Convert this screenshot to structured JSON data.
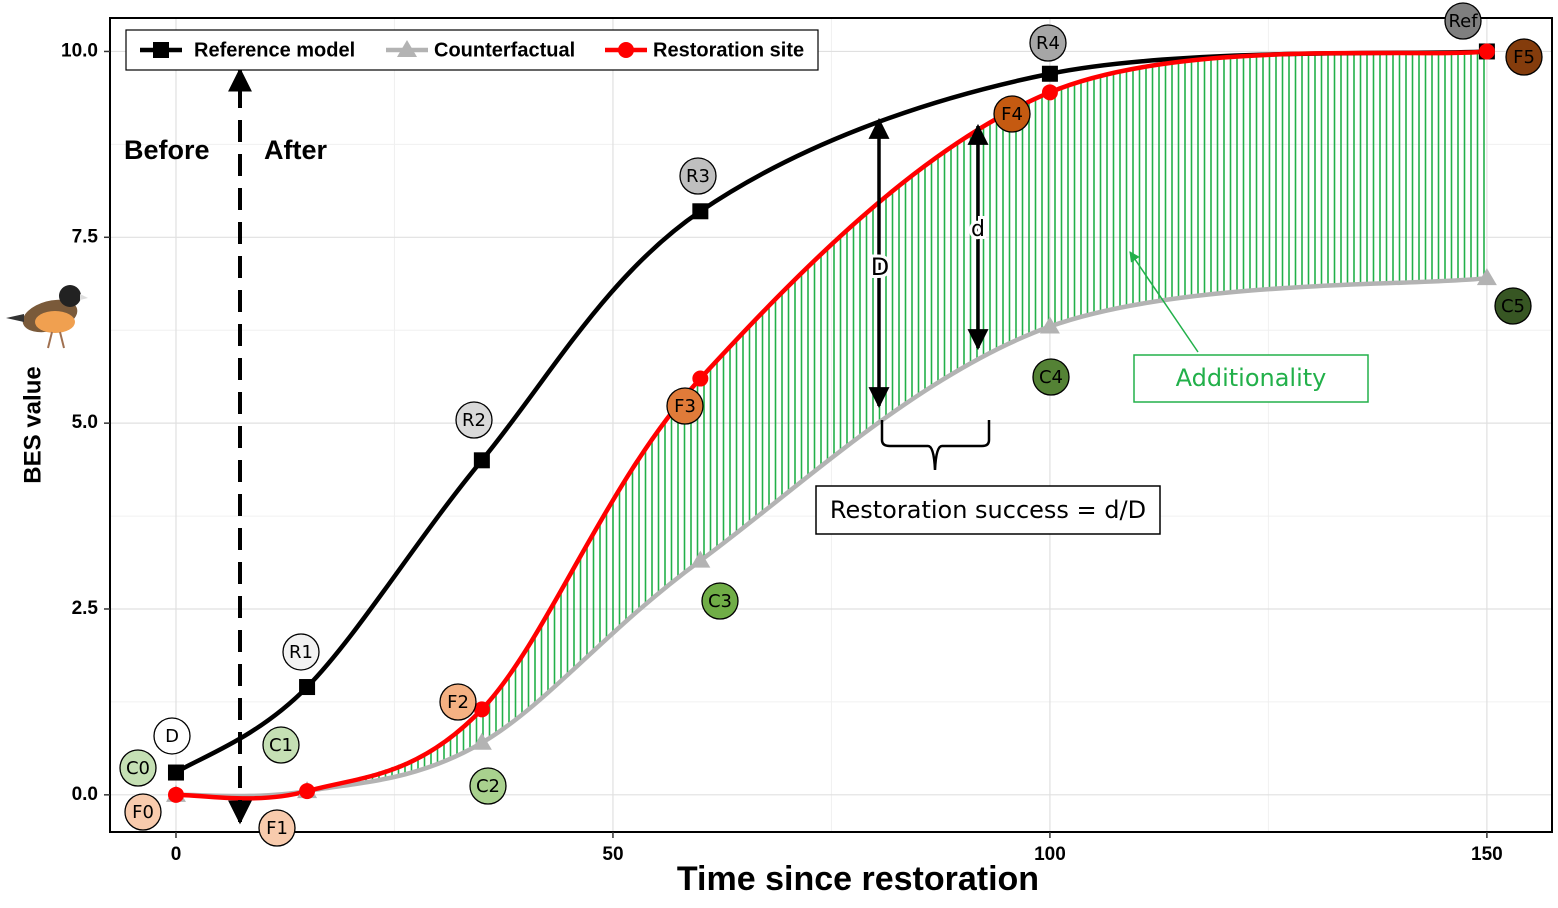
{
  "chart_data": {
    "type": "line",
    "x_label": "Time since restoration",
    "y_label": "BES value",
    "x": [
      0,
      15,
      35,
      60,
      100,
      150
    ],
    "series": [
      {
        "name": "Reference model",
        "color": "#000000",
        "marker": "square",
        "values": [
          0.3,
          1.45,
          4.5,
          7.85,
          9.7,
          10.0
        ]
      },
      {
        "name": "Counterfactual",
        "color": "#b3b3b3",
        "marker": "triangle",
        "values": [
          0.0,
          0.05,
          0.7,
          3.15,
          6.3,
          6.95
        ]
      },
      {
        "name": "Restoration site",
        "color": "#ff0000",
        "marker": "circle",
        "values": [
          0.0,
          0.05,
          1.15,
          5.6,
          9.45,
          10.0
        ]
      }
    ],
    "xlim": [
      -7.55,
      157.45
    ],
    "ylim": [
      -0.5,
      10.45
    ],
    "xticks": [
      0,
      50,
      100,
      150
    ],
    "yticks": [
      {
        "value": 0,
        "label": "0.0"
      },
      {
        "value": 2.5,
        "label": "2.5"
      },
      {
        "value": 5,
        "label": "5.0"
      },
      {
        "value": 7.5,
        "label": "7.5"
      },
      {
        "value": 10,
        "label": "10.0"
      }
    ],
    "x_minor_ticks": [
      25,
      75,
      125
    ],
    "y_minor_ticks": [
      1.25,
      3.75,
      6.25,
      8.75
    ],
    "grid": true,
    "legend": "top-left",
    "annotations": {
      "before": "Before",
      "after": "After",
      "big_d": "D",
      "small_d": "d",
      "additionality": "Additionality",
      "success": "Restoration success = d/D"
    },
    "point_labels": [
      {
        "text": "D",
        "color": "#ffffff"
      },
      {
        "text": "C0",
        "color": "#c5e0b4"
      },
      {
        "text": "F0",
        "color": "#f8cbad"
      },
      {
        "text": "R1",
        "color": "#f2f2f2"
      },
      {
        "text": "C1",
        "color": "#c5e0b4"
      },
      {
        "text": "F1",
        "color": "#f8cbad"
      },
      {
        "text": "R2",
        "color": "#d9d9d9"
      },
      {
        "text": "C2",
        "color": "#a9d18e"
      },
      {
        "text": "F2",
        "color": "#f4b183"
      },
      {
        "text": "R3",
        "color": "#bfbfbf"
      },
      {
        "text": "C3",
        "color": "#70ad47"
      },
      {
        "text": "F3",
        "color": "#e07b39"
      },
      {
        "text": "R4",
        "color": "#a6a6a6"
      },
      {
        "text": "C4",
        "color": "#548235"
      },
      {
        "text": "F4",
        "color": "#c55a11"
      },
      {
        "text": "Ref",
        "color": "#7f7f7f"
      },
      {
        "text": "F5",
        "color": "#843c0c"
      },
      {
        "text": "C5",
        "color": "#375623"
      }
    ]
  }
}
